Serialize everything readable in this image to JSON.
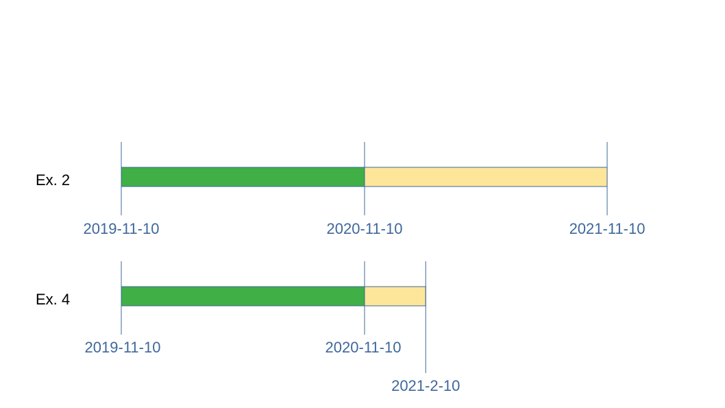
{
  "colors": {
    "elapsed_fill": "#3faf46",
    "remaining_fill": "#fde699",
    "line": "#3e679b",
    "date_text": "#3e679b",
    "label_text": "#000000"
  },
  "timelines": [
    {
      "label": "Ex. 2",
      "segments": [
        {
          "kind": "elapsed",
          "start": "2019-11-10",
          "end": "2020-11-10"
        },
        {
          "kind": "remaining",
          "start": "2020-11-10",
          "end": "2021-11-10"
        }
      ],
      "markers": [
        {
          "date": "2019-11-10",
          "label": "2019-11-10"
        },
        {
          "date": "2020-11-10",
          "label": "2020-11-10"
        },
        {
          "date": "2021-11-10",
          "label": "2021-11-10"
        }
      ]
    },
    {
      "label": "Ex. 4",
      "segments": [
        {
          "kind": "elapsed",
          "start": "2019-11-10",
          "end": "2020-11-10"
        },
        {
          "kind": "remaining",
          "start": "2020-11-10",
          "end": "2021-02-10"
        }
      ],
      "markers": [
        {
          "date": "2019-11-10",
          "label": "2019-11-10"
        },
        {
          "date": "2020-11-10",
          "label": "2020-11-10"
        },
        {
          "date": "2021-02-10",
          "label": "2021-2-10"
        }
      ]
    }
  ]
}
